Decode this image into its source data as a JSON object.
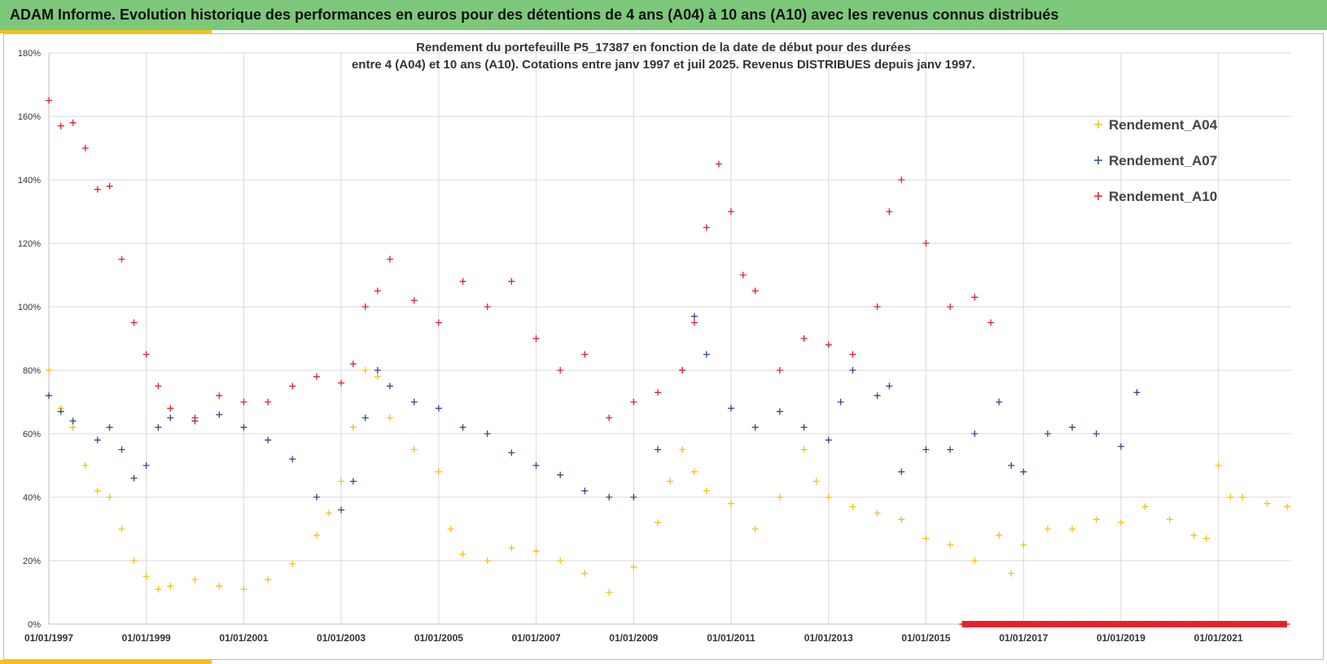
{
  "header": {
    "title": "ADAM Informe. Evolution historique des performances en euros pour des détentions de 4 ans (A04) à 10 ans (A10) avec les revenus connus distribués"
  },
  "chart_data": {
    "type": "scatter",
    "title_lines": [
      "Rendement du portefeuille P5_17387 en fonction de la date de début pour des durées",
      "entre 4 (A04) et 10 ans (A10). Cotations  entre janv 1997 et juil 2025. Revenus DISTRIBUES depuis janv 1997."
    ],
    "xlabel": "",
    "ylabel": "",
    "x_range": [
      "1997-01-01",
      "2022-06-30"
    ],
    "ylim": [
      0,
      180
    ],
    "y_ticks": [
      "0%",
      "20%",
      "40%",
      "60%",
      "80%",
      "100%",
      "120%",
      "140%",
      "160%",
      "180%"
    ],
    "x_ticks": [
      "01/01/1997",
      "01/01/1999",
      "01/01/2001",
      "01/01/2003",
      "01/01/2005",
      "01/01/2007",
      "01/01/2009",
      "01/01/2011",
      "01/01/2013",
      "01/01/2015",
      "01/01/2017",
      "01/01/2019",
      "01/01/2021"
    ],
    "grid": true,
    "legend_position": "top-right",
    "series": [
      {
        "name": "Rendement_A04",
        "color": "#f2c218",
        "end": "2022-06-01",
        "points": [
          [
            "1997-01-01",
            80
          ],
          [
            "1997-04-01",
            68
          ],
          [
            "1997-07-01",
            62
          ],
          [
            "1997-10-01",
            50
          ],
          [
            "1998-01-01",
            42
          ],
          [
            "1998-04-01",
            40
          ],
          [
            "1998-07-01",
            30
          ],
          [
            "1998-10-01",
            20
          ],
          [
            "1999-01-01",
            15
          ],
          [
            "1999-04-01",
            11
          ],
          [
            "1999-07-01",
            12
          ],
          [
            "2000-01-01",
            14
          ],
          [
            "2000-07-01",
            12
          ],
          [
            "2001-01-01",
            11
          ],
          [
            "2001-07-01",
            14
          ],
          [
            "2002-01-01",
            19
          ],
          [
            "2002-07-01",
            28
          ],
          [
            "2002-10-01",
            35
          ],
          [
            "2003-01-01",
            45
          ],
          [
            "2003-04-01",
            62
          ],
          [
            "2003-07-01",
            80
          ],
          [
            "2003-10-01",
            78
          ],
          [
            "2004-01-01",
            65
          ],
          [
            "2004-07-01",
            55
          ],
          [
            "2005-01-01",
            48
          ],
          [
            "2005-04-01",
            30
          ],
          [
            "2005-07-01",
            22
          ],
          [
            "2006-01-01",
            20
          ],
          [
            "2006-07-01",
            24
          ],
          [
            "2007-01-01",
            23
          ],
          [
            "2007-07-01",
            20
          ],
          [
            "2008-01-01",
            16
          ],
          [
            "2008-07-01",
            10
          ],
          [
            "2009-01-01",
            18
          ],
          [
            "2009-07-01",
            32
          ],
          [
            "2009-10-01",
            45
          ],
          [
            "2010-01-01",
            55
          ],
          [
            "2010-04-01",
            48
          ],
          [
            "2010-07-01",
            42
          ],
          [
            "2011-01-01",
            38
          ],
          [
            "2011-07-01",
            30
          ],
          [
            "2012-01-01",
            40
          ],
          [
            "2012-07-01",
            55
          ],
          [
            "2012-10-01",
            45
          ],
          [
            "2013-01-01",
            40
          ],
          [
            "2013-07-01",
            37
          ],
          [
            "2014-01-01",
            35
          ],
          [
            "2014-07-01",
            33
          ],
          [
            "2015-01-01",
            27
          ],
          [
            "2015-07-01",
            25
          ],
          [
            "2016-01-01",
            20
          ],
          [
            "2016-07-01",
            28
          ],
          [
            "2016-10-01",
            16
          ],
          [
            "2017-01-01",
            25
          ],
          [
            "2017-07-01",
            30
          ],
          [
            "2018-01-01",
            30
          ],
          [
            "2018-07-01",
            33
          ],
          [
            "2019-01-01",
            32
          ],
          [
            "2019-07-01",
            37
          ],
          [
            "2020-01-01",
            33
          ],
          [
            "2020-07-01",
            28
          ],
          [
            "2020-10-01",
            27
          ],
          [
            "2021-01-01",
            50
          ],
          [
            "2021-04-01",
            40
          ],
          [
            "2021-07-01",
            40
          ],
          [
            "2022-01-01",
            38
          ],
          [
            "2022-06-01",
            37
          ]
        ]
      },
      {
        "name": "Rendement_A07",
        "color": "#2f4b7c",
        "end": "2019-05-01",
        "points": [
          [
            "1997-01-01",
            72
          ],
          [
            "1997-04-01",
            67
          ],
          [
            "1997-07-01",
            64
          ],
          [
            "1998-01-01",
            58
          ],
          [
            "1998-04-01",
            62
          ],
          [
            "1998-07-01",
            55
          ],
          [
            "1998-10-01",
            46
          ],
          [
            "1999-01-01",
            50
          ],
          [
            "1999-04-01",
            62
          ],
          [
            "1999-07-01",
            65
          ],
          [
            "2000-01-01",
            64
          ],
          [
            "2000-07-01",
            66
          ],
          [
            "2001-01-01",
            62
          ],
          [
            "2001-07-01",
            58
          ],
          [
            "2002-01-01",
            52
          ],
          [
            "2002-07-01",
            40
          ],
          [
            "2003-01-01",
            36
          ],
          [
            "2003-04-01",
            45
          ],
          [
            "2003-07-01",
            65
          ],
          [
            "2003-10-01",
            80
          ],
          [
            "2004-01-01",
            75
          ],
          [
            "2004-07-01",
            70
          ],
          [
            "2005-01-01",
            68
          ],
          [
            "2005-07-01",
            62
          ],
          [
            "2006-01-01",
            60
          ],
          [
            "2006-07-01",
            54
          ],
          [
            "2007-01-01",
            50
          ],
          [
            "2007-07-01",
            47
          ],
          [
            "2008-01-01",
            42
          ],
          [
            "2008-07-01",
            40
          ],
          [
            "2009-01-01",
            40
          ],
          [
            "2009-07-01",
            55
          ],
          [
            "2010-01-01",
            80
          ],
          [
            "2010-04-01",
            97
          ],
          [
            "2010-07-01",
            85
          ],
          [
            "2011-01-01",
            68
          ],
          [
            "2011-07-01",
            62
          ],
          [
            "2012-01-01",
            67
          ],
          [
            "2012-07-01",
            62
          ],
          [
            "2013-01-01",
            58
          ],
          [
            "2013-04-01",
            70
          ],
          [
            "2013-07-01",
            80
          ],
          [
            "2014-01-01",
            72
          ],
          [
            "2014-04-01",
            75
          ],
          [
            "2014-07-01",
            48
          ],
          [
            "2015-01-01",
            55
          ],
          [
            "2015-07-01",
            55
          ],
          [
            "2016-01-01",
            60
          ],
          [
            "2016-07-01",
            70
          ],
          [
            "2016-10-01",
            50
          ],
          [
            "2017-01-01",
            48
          ],
          [
            "2017-07-01",
            60
          ],
          [
            "2018-01-01",
            62
          ],
          [
            "2018-07-01",
            60
          ],
          [
            "2019-01-01",
            56
          ],
          [
            "2019-05-01",
            73
          ]
        ]
      },
      {
        "name": "Rendement_A10",
        "color": "#e3202a",
        "end": "2016-05-01",
        "points": [
          [
            "1997-01-01",
            165
          ],
          [
            "1997-04-01",
            157
          ],
          [
            "1997-07-01",
            158
          ],
          [
            "1997-10-01",
            150
          ],
          [
            "1998-01-01",
            137
          ],
          [
            "1998-04-01",
            138
          ],
          [
            "1998-07-01",
            115
          ],
          [
            "1998-10-01",
            95
          ],
          [
            "1999-01-01",
            85
          ],
          [
            "1999-04-01",
            75
          ],
          [
            "1999-07-01",
            68
          ],
          [
            "2000-01-01",
            65
          ],
          [
            "2000-07-01",
            72
          ],
          [
            "2001-01-01",
            70
          ],
          [
            "2001-07-01",
            70
          ],
          [
            "2002-01-01",
            75
          ],
          [
            "2002-07-01",
            78
          ],
          [
            "2003-01-01",
            76
          ],
          [
            "2003-04-01",
            82
          ],
          [
            "2003-07-01",
            100
          ],
          [
            "2003-10-01",
            105
          ],
          [
            "2004-01-01",
            115
          ],
          [
            "2004-07-01",
            102
          ],
          [
            "2005-01-01",
            95
          ],
          [
            "2005-07-01",
            108
          ],
          [
            "2006-01-01",
            100
          ],
          [
            "2006-07-01",
            108
          ],
          [
            "2007-01-01",
            90
          ],
          [
            "2007-07-01",
            80
          ],
          [
            "2008-01-01",
            85
          ],
          [
            "2008-07-01",
            65
          ],
          [
            "2009-01-01",
            70
          ],
          [
            "2009-07-01",
            73
          ],
          [
            "2010-01-01",
            80
          ],
          [
            "2010-04-01",
            95
          ],
          [
            "2010-07-01",
            125
          ],
          [
            "2010-10-01",
            145
          ],
          [
            "2011-01-01",
            130
          ],
          [
            "2011-04-01",
            110
          ],
          [
            "2011-07-01",
            105
          ],
          [
            "2012-01-01",
            80
          ],
          [
            "2012-07-01",
            90
          ],
          [
            "2013-01-01",
            88
          ],
          [
            "2013-07-01",
            85
          ],
          [
            "2014-01-01",
            100
          ],
          [
            "2014-04-01",
            130
          ],
          [
            "2014-07-01",
            140
          ],
          [
            "2015-01-01",
            120
          ],
          [
            "2015-07-01",
            100
          ],
          [
            "2016-01-01",
            103
          ],
          [
            "2016-05-01",
            95
          ]
        ]
      }
    ],
    "zero_marker": {
      "series": "Rendement_A10",
      "value": 0,
      "from": "2015-10-01",
      "to": "2022-06-01"
    }
  }
}
